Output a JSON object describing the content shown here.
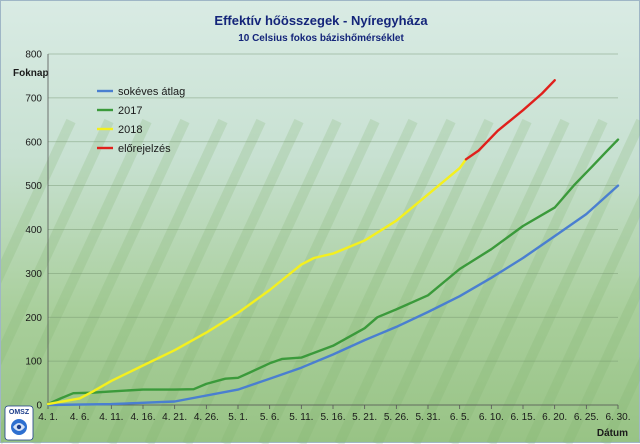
{
  "chart_data": {
    "type": "line",
    "title": "Effektív hőösszegek - Nyíregyháza",
    "subtitle": "10 Celsius fokos bázishőmérséklet",
    "ylabel": "Foknap",
    "xlabel": "Dátum",
    "ylim": [
      0,
      800
    ],
    "yticks": [
      0,
      100,
      200,
      300,
      400,
      500,
      600,
      700,
      800
    ],
    "xlim": [
      "4. 1.",
      "6. 30."
    ],
    "xticks": [
      "4. 1.",
      "4. 6.",
      "4. 11.",
      "4. 16.",
      "4. 21.",
      "4. 26.",
      "5. 1.",
      "5. 6.",
      "5. 11.",
      "5. 16.",
      "5. 21.",
      "5. 26.",
      "5. 31.",
      "6. 5.",
      "6. 10.",
      "6. 15.",
      "6. 20.",
      "6. 25.",
      "6. 30."
    ],
    "grid": true,
    "legend_position": "top-left",
    "series": [
      {
        "name": "sokéves átlag",
        "color": "#4a7fd0",
        "points": [
          [
            "4. 1.",
            0
          ],
          [
            "4. 11.",
            2
          ],
          [
            "4. 21.",
            8
          ],
          [
            "5. 1.",
            35
          ],
          [
            "5. 6.",
            60
          ],
          [
            "5. 11.",
            85
          ],
          [
            "5. 16.",
            115
          ],
          [
            "5. 21.",
            148
          ],
          [
            "5. 26.",
            178
          ],
          [
            "5. 31.",
            212
          ],
          [
            "6. 5.",
            248
          ],
          [
            "6. 10.",
            290
          ],
          [
            "6. 15.",
            335
          ],
          [
            "6. 20.",
            385
          ],
          [
            "6. 25.",
            435
          ],
          [
            "6. 30.",
            500
          ]
        ]
      },
      {
        "name": "2017",
        "color": "#3b9a3b",
        "points": [
          [
            "4. 1.",
            2
          ],
          [
            "4. 3.",
            15
          ],
          [
            "4. 5.",
            27
          ],
          [
            "4. 8.",
            28
          ],
          [
            "4. 11.",
            31
          ],
          [
            "4. 16.",
            35
          ],
          [
            "4. 21.",
            35
          ],
          [
            "4. 24.",
            36
          ],
          [
            "4. 26.",
            48
          ],
          [
            "4. 29.",
            60
          ],
          [
            "5. 1.",
            62
          ],
          [
            "5. 3.",
            75
          ],
          [
            "5. 6.",
            95
          ],
          [
            "5. 8.",
            105
          ],
          [
            "5. 11.",
            108
          ],
          [
            "5. 16.",
            135
          ],
          [
            "5. 21.",
            175
          ],
          [
            "5. 23.",
            200
          ],
          [
            "5. 26.",
            218
          ],
          [
            "5. 31.",
            250
          ],
          [
            "6. 5.",
            310
          ],
          [
            "6. 10.",
            355
          ],
          [
            "6. 15.",
            408
          ],
          [
            "6. 20.",
            450
          ],
          [
            "6. 23.",
            500
          ],
          [
            "6. 26.",
            545
          ],
          [
            "6. 28.",
            575
          ],
          [
            "6. 30.",
            605
          ]
        ]
      },
      {
        "name": "2018",
        "color": "#f4f01e",
        "points": [
          [
            "4. 1.",
            2
          ],
          [
            "4. 6.",
            15
          ],
          [
            "4. 8.",
            30
          ],
          [
            "4. 11.",
            55
          ],
          [
            "4. 16.",
            90
          ],
          [
            "4. 21.",
            125
          ],
          [
            "4. 26.",
            165
          ],
          [
            "5. 1.",
            210
          ],
          [
            "5. 6.",
            262
          ],
          [
            "5. 11.",
            320
          ],
          [
            "5. 13.",
            335
          ],
          [
            "5. 16.",
            345
          ],
          [
            "5. 21.",
            375
          ],
          [
            "5. 26.",
            420
          ],
          [
            "5. 31.",
            480
          ],
          [
            "6. 5.",
            540
          ],
          [
            "6. 6.",
            560
          ]
        ]
      },
      {
        "name": "előrejelzés",
        "color": "#e0201c",
        "points": [
          [
            "6. 6.",
            560
          ],
          [
            "6. 8.",
            580
          ],
          [
            "6. 11.",
            625
          ],
          [
            "6. 15.",
            672
          ],
          [
            "6. 18.",
            710
          ],
          [
            "6. 20.",
            740
          ]
        ]
      }
    ]
  },
  "logo": {
    "text": "OMSZ"
  }
}
